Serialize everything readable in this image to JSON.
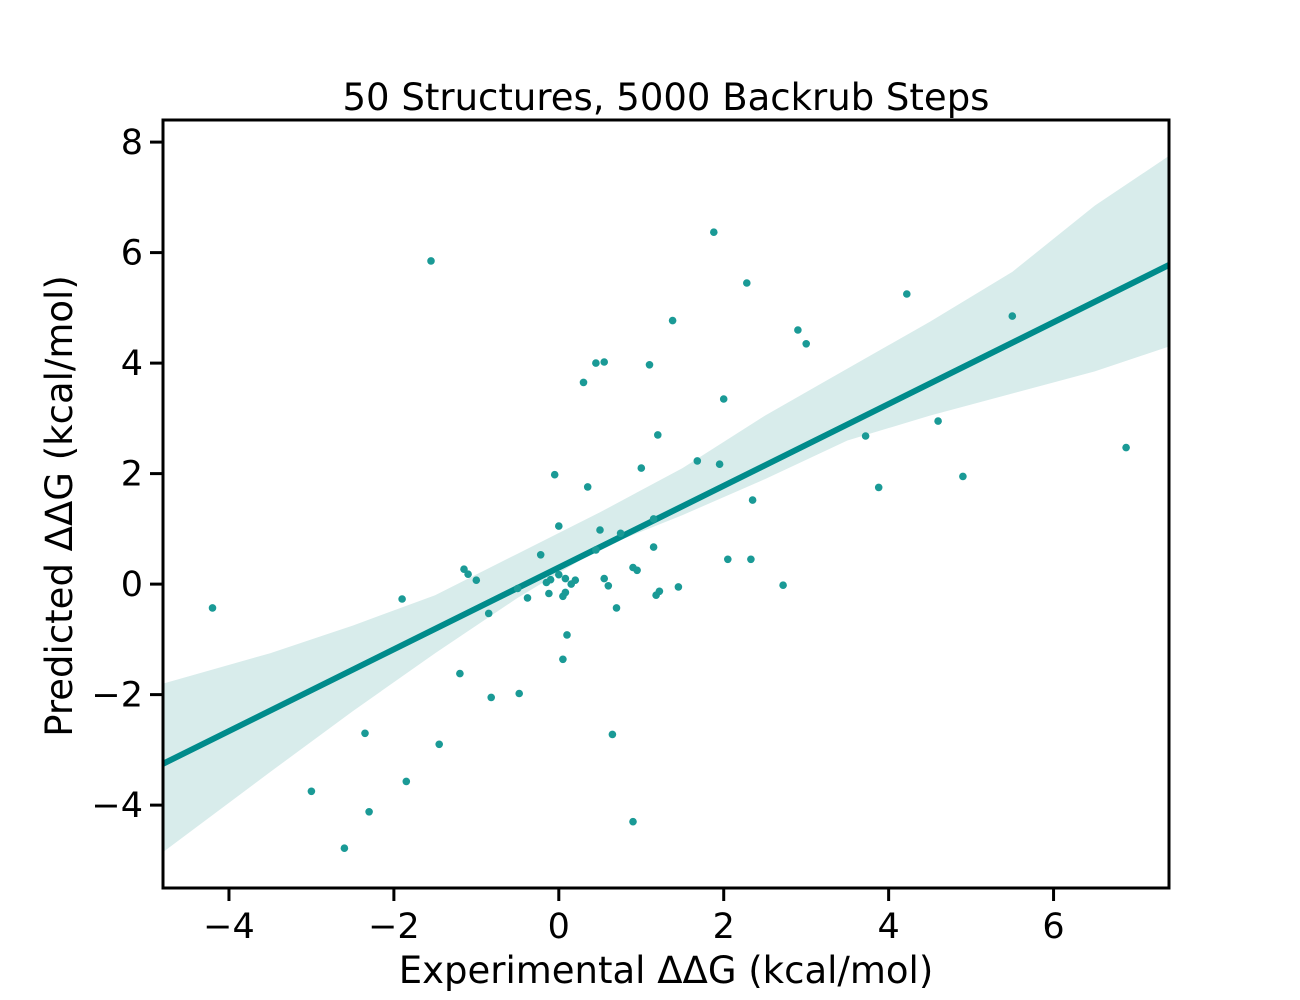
{
  "chart_data": {
    "type": "scatter",
    "title": "50 Structures, 5000 Backrub Steps",
    "xlabel": "Experimental ΔΔG (kcal/mol)",
    "ylabel": "Predicted ΔΔG (kcal/mol)",
    "xlim": [
      -4.8,
      7.4
    ],
    "ylim": [
      -5.5,
      8.4
    ],
    "xticks": [
      -4,
      -2,
      0,
      2,
      4,
      6
    ],
    "yticks": [
      -4,
      -2,
      0,
      2,
      4,
      6,
      8
    ],
    "xtick_labels": [
      "−4",
      "−2",
      "0",
      "2",
      "4",
      "6"
    ],
    "ytick_labels": [
      "−4",
      "−2",
      "0",
      "2",
      "4",
      "6",
      "8"
    ],
    "grid": false,
    "colors": {
      "points": "#1a9a96",
      "fit_line": "#008b8b",
      "confidence_band": "#d8eceb"
    },
    "regression": {
      "slope": 0.74,
      "intercept": 0.3
    },
    "confidence_band": {
      "x": [
        -4.8,
        -3.5,
        -2.5,
        -1.5,
        -0.5,
        0.5,
        1.5,
        2.5,
        3.5,
        4.5,
        5.5,
        6.5,
        7.4
      ],
      "lower": [
        -4.85,
        -3.4,
        -2.3,
        -1.25,
        -0.25,
        0.65,
        1.25,
        1.9,
        2.6,
        3.05,
        3.45,
        3.85,
        4.3
      ],
      "upper": [
        -1.8,
        -1.25,
        -0.75,
        -0.2,
        0.55,
        1.3,
        2.1,
        3.05,
        3.9,
        4.75,
        5.65,
        6.85,
        7.75
      ]
    },
    "points": [
      {
        "x": -4.2,
        "y": -0.43
      },
      {
        "x": -3.0,
        "y": -3.75
      },
      {
        "x": -2.6,
        "y": -4.78
      },
      {
        "x": -2.35,
        "y": -2.7
      },
      {
        "x": -2.3,
        "y": -4.12
      },
      {
        "x": -1.9,
        "y": -0.27
      },
      {
        "x": -1.85,
        "y": -3.57
      },
      {
        "x": -1.55,
        "y": 5.85
      },
      {
        "x": -1.45,
        "y": -2.9
      },
      {
        "x": -1.2,
        "y": -1.62
      },
      {
        "x": -1.15,
        "y": 0.27
      },
      {
        "x": -1.1,
        "y": 0.18
      },
      {
        "x": -1.0,
        "y": 0.07
      },
      {
        "x": -0.85,
        "y": -0.53
      },
      {
        "x": -0.82,
        "y": -2.05
      },
      {
        "x": -0.5,
        "y": -0.08
      },
      {
        "x": -0.48,
        "y": -1.98
      },
      {
        "x": -0.38,
        "y": -0.25
      },
      {
        "x": -0.22,
        "y": 0.53
      },
      {
        "x": -0.15,
        "y": 0.03
      },
      {
        "x": -0.12,
        "y": -0.17
      },
      {
        "x": -0.1,
        "y": 0.08
      },
      {
        "x": -0.05,
        "y": 1.98
      },
      {
        "x": 0.0,
        "y": 0.17
      },
      {
        "x": 0.0,
        "y": 1.05
      },
      {
        "x": 0.05,
        "y": -0.22
      },
      {
        "x": 0.05,
        "y": -1.36
      },
      {
        "x": 0.08,
        "y": -0.15
      },
      {
        "x": 0.08,
        "y": 0.1
      },
      {
        "x": 0.1,
        "y": -0.92
      },
      {
        "x": 0.15,
        "y": 0.0
      },
      {
        "x": 0.2,
        "y": 0.07
      },
      {
        "x": 0.3,
        "y": 3.65
      },
      {
        "x": 0.35,
        "y": 1.76
      },
      {
        "x": 0.45,
        "y": 0.62
      },
      {
        "x": 0.45,
        "y": 4.0
      },
      {
        "x": 0.5,
        "y": 0.98
      },
      {
        "x": 0.55,
        "y": 4.02
      },
      {
        "x": 0.55,
        "y": 0.1
      },
      {
        "x": 0.6,
        "y": -0.03
      },
      {
        "x": 0.65,
        "y": -2.72
      },
      {
        "x": 0.7,
        "y": -0.43
      },
      {
        "x": 0.75,
        "y": 0.92
      },
      {
        "x": 0.9,
        "y": 0.3
      },
      {
        "x": 0.9,
        "y": -4.3
      },
      {
        "x": 0.95,
        "y": 0.25
      },
      {
        "x": 1.0,
        "y": 2.1
      },
      {
        "x": 1.1,
        "y": 3.97
      },
      {
        "x": 1.15,
        "y": 0.67
      },
      {
        "x": 1.15,
        "y": 1.18
      },
      {
        "x": 1.18,
        "y": -0.2
      },
      {
        "x": 1.2,
        "y": 2.7
      },
      {
        "x": 1.22,
        "y": -0.13
      },
      {
        "x": 1.38,
        "y": 4.77
      },
      {
        "x": 1.45,
        "y": -0.05
      },
      {
        "x": 1.68,
        "y": 2.23
      },
      {
        "x": 1.88,
        "y": 6.37
      },
      {
        "x": 1.95,
        "y": 2.17
      },
      {
        "x": 2.0,
        "y": 3.35
      },
      {
        "x": 2.05,
        "y": 0.45
      },
      {
        "x": 2.28,
        "y": 5.45
      },
      {
        "x": 2.33,
        "y": 0.45
      },
      {
        "x": 2.35,
        "y": 1.52
      },
      {
        "x": 2.72,
        "y": -0.02
      },
      {
        "x": 2.9,
        "y": 4.6
      },
      {
        "x": 3.0,
        "y": 4.35
      },
      {
        "x": 3.72,
        "y": 2.68
      },
      {
        "x": 3.88,
        "y": 1.75
      },
      {
        "x": 4.22,
        "y": 5.25
      },
      {
        "x": 4.6,
        "y": 2.95
      },
      {
        "x": 4.9,
        "y": 1.95
      },
      {
        "x": 5.5,
        "y": 4.85
      },
      {
        "x": 6.88,
        "y": 2.47
      }
    ]
  }
}
